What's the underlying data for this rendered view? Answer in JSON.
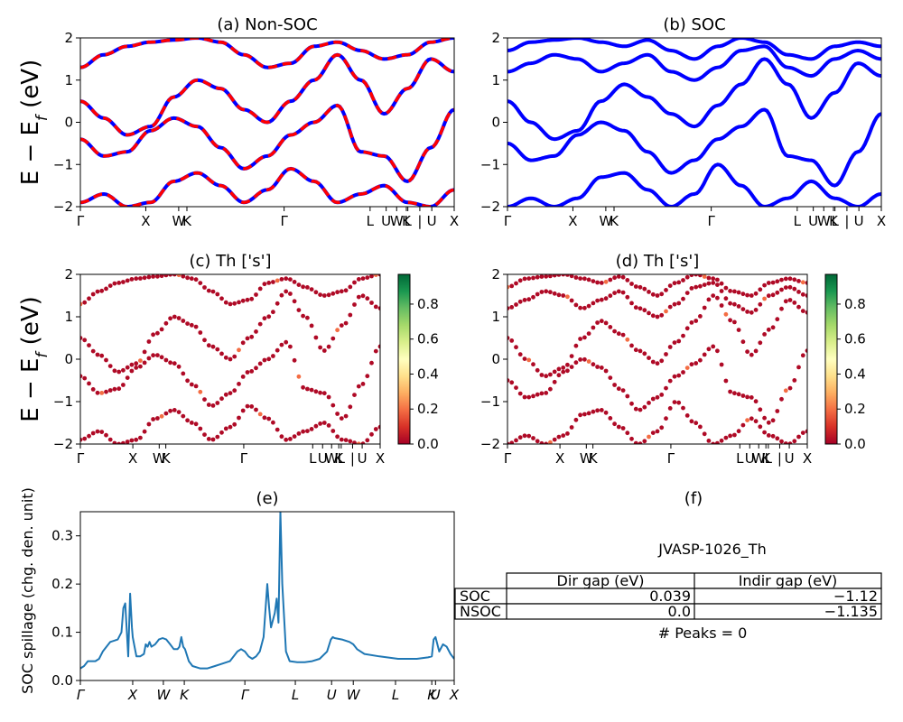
{
  "chart_data": [
    {
      "id": "a",
      "type": "line",
      "title": "(a) Non-SOC",
      "ylabel": "E - E_f (eV)",
      "ylim": [
        -2,
        2
      ],
      "yticks": [
        -2,
        -1,
        0,
        1,
        2
      ],
      "xlim": [
        0,
        1
      ],
      "xticks": [
        {
          "label": "Γ",
          "x": 0.0
        },
        {
          "label": "X",
          "x": 0.175
        },
        {
          "label": "W",
          "x": 0.263
        },
        {
          "label": "K",
          "x": 0.285
        },
        {
          "label": "Γ",
          "x": 0.545
        },
        {
          "label": "L",
          "x": 0.775
        },
        {
          "label": "U",
          "x": 0.818
        },
        {
          "label": "W",
          "x": 0.846
        },
        {
          "label": "K",
          "x": 0.872
        },
        {
          "label": "L",
          "x": 0.876
        },
        {
          "label": "|",
          "x": 0.908
        },
        {
          "label": "U",
          "x": 0.94
        },
        {
          "label": "X",
          "x": 1.0
        }
      ],
      "series": [
        {
          "color": "#0000ff",
          "style": "solid",
          "bands": [
            [
              1.3,
              1.6,
              1.8,
              1.9,
              1.95,
              2.0,
              1.9,
              1.6,
              1.3,
              1.4,
              1.8,
              1.9,
              1.7,
              1.5,
              1.6,
              1.9,
              2.0
            ],
            [
              0.5,
              0.1,
              -0.3,
              -0.1,
              0.6,
              1.0,
              0.8,
              0.3,
              0.0,
              0.5,
              1.0,
              1.6,
              1.0,
              0.2,
              0.8,
              1.5,
              1.2
            ],
            [
              -0.4,
              -0.8,
              -0.7,
              -0.2,
              0.1,
              -0.1,
              -0.6,
              -1.1,
              -0.8,
              -0.3,
              0.0,
              0.4,
              -0.7,
              -0.8,
              -1.4,
              -0.6,
              0.3
            ],
            [
              -1.9,
              -1.7,
              -2.0,
              -1.9,
              -1.4,
              -1.2,
              -1.5,
              -1.9,
              -1.6,
              -1.1,
              -1.4,
              -1.9,
              -1.7,
              -1.5,
              -1.9,
              -2.0,
              -1.6
            ]
          ]
        },
        {
          "color": "#ff0000",
          "style": "dashed",
          "bands": [
            [
              1.3,
              1.6,
              1.8,
              1.9,
              1.95,
              2.0,
              1.9,
              1.6,
              1.3,
              1.4,
              1.8,
              1.9,
              1.7,
              1.5,
              1.6,
              1.9,
              2.0
            ],
            [
              0.5,
              0.1,
              -0.3,
              -0.1,
              0.6,
              1.0,
              0.8,
              0.3,
              0.0,
              0.5,
              1.0,
              1.6,
              1.0,
              0.2,
              0.8,
              1.5,
              1.2
            ],
            [
              -0.4,
              -0.8,
              -0.7,
              -0.2,
              0.1,
              -0.1,
              -0.6,
              -1.1,
              -0.8,
              -0.3,
              0.0,
              0.4,
              -0.7,
              -0.8,
              -1.4,
              -0.6,
              0.3
            ],
            [
              -1.9,
              -1.7,
              -2.0,
              -1.9,
              -1.4,
              -1.2,
              -1.5,
              -1.9,
              -1.6,
              -1.1,
              -1.4,
              -1.9,
              -1.7,
              -1.5,
              -1.9,
              -2.0,
              -1.6
            ]
          ]
        }
      ]
    },
    {
      "id": "b",
      "type": "line",
      "title": "(b) SOC",
      "ylabel": "",
      "ylim": [
        -2,
        2
      ],
      "yticks": [
        -2,
        -1,
        0,
        1,
        2
      ],
      "xlim": [
        0,
        1
      ],
      "xticks": [
        {
          "label": "Γ",
          "x": 0.0
        },
        {
          "label": "X",
          "x": 0.175
        },
        {
          "label": "W",
          "x": 0.263
        },
        {
          "label": "K",
          "x": 0.285
        },
        {
          "label": "Γ",
          "x": 0.545
        },
        {
          "label": "L",
          "x": 0.775
        },
        {
          "label": "U",
          "x": 0.818
        },
        {
          "label": "W",
          "x": 0.846
        },
        {
          "label": "K",
          "x": 0.872
        },
        {
          "label": "L",
          "x": 0.876
        },
        {
          "label": "|",
          "x": 0.908
        },
        {
          "label": "U",
          "x": 0.94
        },
        {
          "label": "X",
          "x": 1.0
        }
      ],
      "series": [
        {
          "color": "#0000ff",
          "style": "solid",
          "bands": [
            [
              1.7,
              1.9,
              1.95,
              2.0,
              1.9,
              1.8,
              1.95,
              1.7,
              1.5,
              1.8,
              2.0,
              1.9,
              1.6,
              1.5,
              1.8,
              1.9,
              1.8
            ],
            [
              1.2,
              1.4,
              1.6,
              1.5,
              1.2,
              1.4,
              1.6,
              1.2,
              1.0,
              1.3,
              1.7,
              1.8,
              1.3,
              1.1,
              1.5,
              1.7,
              1.5
            ],
            [
              0.5,
              0.0,
              -0.4,
              -0.2,
              0.5,
              0.9,
              0.6,
              0.2,
              -0.1,
              0.4,
              0.9,
              1.5,
              0.9,
              0.1,
              0.7,
              1.4,
              1.1
            ],
            [
              -0.5,
              -0.9,
              -0.8,
              -0.3,
              0.0,
              -0.2,
              -0.7,
              -1.2,
              -0.9,
              -0.4,
              -0.1,
              0.3,
              -0.8,
              -0.9,
              -1.5,
              -0.7,
              0.2
            ],
            [
              -2.0,
              -1.8,
              -2.0,
              -1.8,
              -1.3,
              -1.2,
              -1.6,
              -2.0,
              -1.7,
              -1.0,
              -1.5,
              -2.0,
              -1.8,
              -1.4,
              -1.8,
              -2.0,
              -1.7
            ]
          ]
        }
      ]
    },
    {
      "id": "c",
      "type": "scatter",
      "title": "(c)  Th ['s']",
      "ylabel": "E - E_f (eV)",
      "ylim": [
        -2,
        2
      ],
      "yticks": [
        -2,
        -1,
        0,
        1,
        2
      ],
      "xlim": [
        0,
        1
      ],
      "xticks": [
        {
          "label": "Γ",
          "x": 0.0
        },
        {
          "label": "X",
          "x": 0.175
        },
        {
          "label": "W",
          "x": 0.263
        },
        {
          "label": "K",
          "x": 0.285
        },
        {
          "label": "Γ",
          "x": 0.545
        },
        {
          "label": "L",
          "x": 0.775
        },
        {
          "label": "U",
          "x": 0.808
        },
        {
          "label": "W",
          "x": 0.838
        },
        {
          "label": "K",
          "x": 0.862
        },
        {
          "label": "L",
          "x": 0.87
        },
        {
          "label": "|",
          "x": 0.908
        },
        {
          "label": "U",
          "x": 0.94
        },
        {
          "label": "X",
          "x": 1.0
        }
      ],
      "colorbar": {
        "cmap": "RdYlGn",
        "ticks": [
          "0.0",
          "0.2",
          "0.4",
          "0.6",
          "0.8"
        ],
        "range": [
          0.0,
          0.97
        ]
      },
      "bands": [
        [
          1.3,
          1.6,
          1.8,
          1.9,
          1.95,
          2.0,
          1.9,
          1.6,
          1.3,
          1.4,
          1.8,
          1.9,
          1.7,
          1.5,
          1.6,
          1.9,
          2.0
        ],
        [
          0.5,
          0.1,
          -0.3,
          -0.1,
          0.6,
          1.0,
          0.8,
          0.3,
          0.0,
          0.5,
          1.0,
          1.6,
          1.0,
          0.2,
          0.8,
          1.5,
          1.2
        ],
        [
          -0.4,
          -0.8,
          -0.7,
          -0.2,
          0.1,
          -0.1,
          -0.6,
          -1.1,
          -0.8,
          -0.3,
          0.0,
          0.4,
          -0.7,
          -0.8,
          -1.4,
          -0.6,
          0.3
        ],
        [
          -1.9,
          -1.7,
          -2.0,
          -1.9,
          -1.4,
          -1.2,
          -1.5,
          -1.9,
          -1.6,
          -1.1,
          -1.4,
          -1.9,
          -1.7,
          -1.5,
          -1.9,
          -2.0,
          -1.6
        ]
      ]
    },
    {
      "id": "d",
      "type": "scatter",
      "title": "(d) Th ['s']",
      "ylabel": "",
      "ylim": [
        -2,
        2
      ],
      "yticks": [
        -2,
        -1,
        0,
        1,
        2
      ],
      "xlim": [
        0,
        1
      ],
      "xticks": [
        {
          "label": "Γ",
          "x": 0.0
        },
        {
          "label": "X",
          "x": 0.175
        },
        {
          "label": "W",
          "x": 0.263
        },
        {
          "label": "K",
          "x": 0.285
        },
        {
          "label": "Γ",
          "x": 0.545
        },
        {
          "label": "L",
          "x": 0.775
        },
        {
          "label": "U",
          "x": 0.808
        },
        {
          "label": "W",
          "x": 0.838
        },
        {
          "label": "K",
          "x": 0.862
        },
        {
          "label": "L",
          "x": 0.87
        },
        {
          "label": "|",
          "x": 0.908
        },
        {
          "label": "U",
          "x": 0.94
        },
        {
          "label": "X",
          "x": 1.0
        }
      ],
      "colorbar": {
        "cmap": "RdYlGn",
        "ticks": [
          "0.0",
          "0.2",
          "0.4",
          "0.6",
          "0.8"
        ],
        "range": [
          0.0,
          0.97
        ]
      },
      "bands": [
        [
          1.7,
          1.9,
          1.95,
          2.0,
          1.9,
          1.8,
          1.95,
          1.7,
          1.5,
          1.8,
          2.0,
          1.9,
          1.6,
          1.5,
          1.8,
          1.9,
          1.8
        ],
        [
          1.2,
          1.4,
          1.6,
          1.5,
          1.2,
          1.4,
          1.6,
          1.2,
          1.0,
          1.3,
          1.7,
          1.8,
          1.3,
          1.1,
          1.5,
          1.7,
          1.5
        ],
        [
          0.5,
          0.0,
          -0.4,
          -0.2,
          0.5,
          0.9,
          0.6,
          0.2,
          -0.1,
          0.4,
          0.9,
          1.5,
          0.9,
          0.1,
          0.7,
          1.4,
          1.1
        ],
        [
          -0.5,
          -0.9,
          -0.8,
          -0.3,
          0.0,
          -0.2,
          -0.7,
          -1.2,
          -0.9,
          -0.4,
          -0.1,
          0.3,
          -0.8,
          -0.9,
          -1.5,
          -0.7,
          0.2
        ],
        [
          -2.0,
          -1.8,
          -2.0,
          -1.8,
          -1.3,
          -1.2,
          -1.6,
          -2.0,
          -1.7,
          -1.0,
          -1.5,
          -2.0,
          -1.8,
          -1.4,
          -1.8,
          -2.0,
          -1.7
        ]
      ]
    },
    {
      "id": "e",
      "type": "line",
      "title": "(e)",
      "ylabel": "SOC spillage (chg. den. unit)",
      "ylim": [
        0,
        0.35
      ],
      "yticks": [
        0.0,
        0.1,
        0.2,
        0.3
      ],
      "ytick_labels": [
        "0.0",
        "0.1",
        "0.2",
        "0.3"
      ],
      "xlim": [
        0,
        1
      ],
      "xticks": [
        {
          "label": "Γ",
          "x": 0.0
        },
        {
          "label": "X",
          "x": 0.14
        },
        {
          "label": "W",
          "x": 0.222
        },
        {
          "label": "K",
          "x": 0.278
        },
        {
          "label": "Γ",
          "x": 0.44
        },
        {
          "label": "L",
          "x": 0.575
        },
        {
          "label": "U",
          "x": 0.672
        },
        {
          "label": "W",
          "x": 0.73
        },
        {
          "label": "L",
          "x": 0.843
        },
        {
          "label": "K",
          "x": 0.94
        },
        {
          "label": "U",
          "x": 0.95
        },
        {
          "label": "X",
          "x": 1.0
        }
      ],
      "series": [
        {
          "color": "#1f77b4",
          "x": [
            0,
            0.01,
            0.02,
            0.04,
            0.05,
            0.06,
            0.08,
            0.1,
            0.11,
            0.115,
            0.12,
            0.125,
            0.128,
            0.13,
            0.133,
            0.138,
            0.14,
            0.145,
            0.15,
            0.16,
            0.17,
            0.175,
            0.18,
            0.185,
            0.19,
            0.2,
            0.205,
            0.21,
            0.22,
            0.23,
            0.24,
            0.25,
            0.26,
            0.265,
            0.27,
            0.275,
            0.28,
            0.29,
            0.3,
            0.32,
            0.34,
            0.36,
            0.38,
            0.4,
            0.42,
            0.43,
            0.44,
            0.45,
            0.46,
            0.47,
            0.48,
            0.49,
            0.5,
            0.505,
            0.51,
            0.52,
            0.525,
            0.53,
            0.535,
            0.54,
            0.55,
            0.56,
            0.58,
            0.6,
            0.62,
            0.64,
            0.66,
            0.67,
            0.675,
            0.68,
            0.7,
            0.72,
            0.73,
            0.74,
            0.76,
            0.8,
            0.85,
            0.9,
            0.93,
            0.94,
            0.945,
            0.95,
            0.96,
            0.97,
            0.98,
            0.99,
            1.0
          ],
          "y": [
            0.025,
            0.03,
            0.04,
            0.04,
            0.045,
            0.06,
            0.08,
            0.085,
            0.1,
            0.15,
            0.16,
            0.09,
            0.05,
            0.1,
            0.18,
            0.11,
            0.09,
            0.07,
            0.05,
            0.05,
            0.055,
            0.075,
            0.07,
            0.08,
            0.07,
            0.075,
            0.08,
            0.085,
            0.088,
            0.085,
            0.075,
            0.065,
            0.065,
            0.07,
            0.09,
            0.07,
            0.065,
            0.04,
            0.03,
            0.025,
            0.025,
            0.03,
            0.035,
            0.04,
            0.06,
            0.065,
            0.06,
            0.05,
            0.045,
            0.05,
            0.06,
            0.09,
            0.2,
            0.15,
            0.11,
            0.14,
            0.17,
            0.12,
            0.35,
            0.2,
            0.06,
            0.04,
            0.038,
            0.038,
            0.04,
            0.045,
            0.06,
            0.085,
            0.09,
            0.088,
            0.085,
            0.08,
            0.075,
            0.065,
            0.055,
            0.05,
            0.045,
            0.045,
            0.048,
            0.05,
            0.085,
            0.09,
            0.06,
            0.075,
            0.07,
            0.055,
            0.045
          ]
        }
      ]
    },
    {
      "id": "f",
      "type": "table",
      "title": "(f)",
      "subtitle": "JVASP-1026_Th",
      "columns": [
        "Dir gap (eV)",
        "Indir gap (eV)"
      ],
      "rows": [
        {
          "label": "SOC",
          "values": [
            "0.039",
            "-1.12"
          ]
        },
        {
          "label": "NSOC",
          "values": [
            "0.0",
            "-1.135"
          ]
        }
      ],
      "footer": "# Peaks = 0"
    }
  ]
}
